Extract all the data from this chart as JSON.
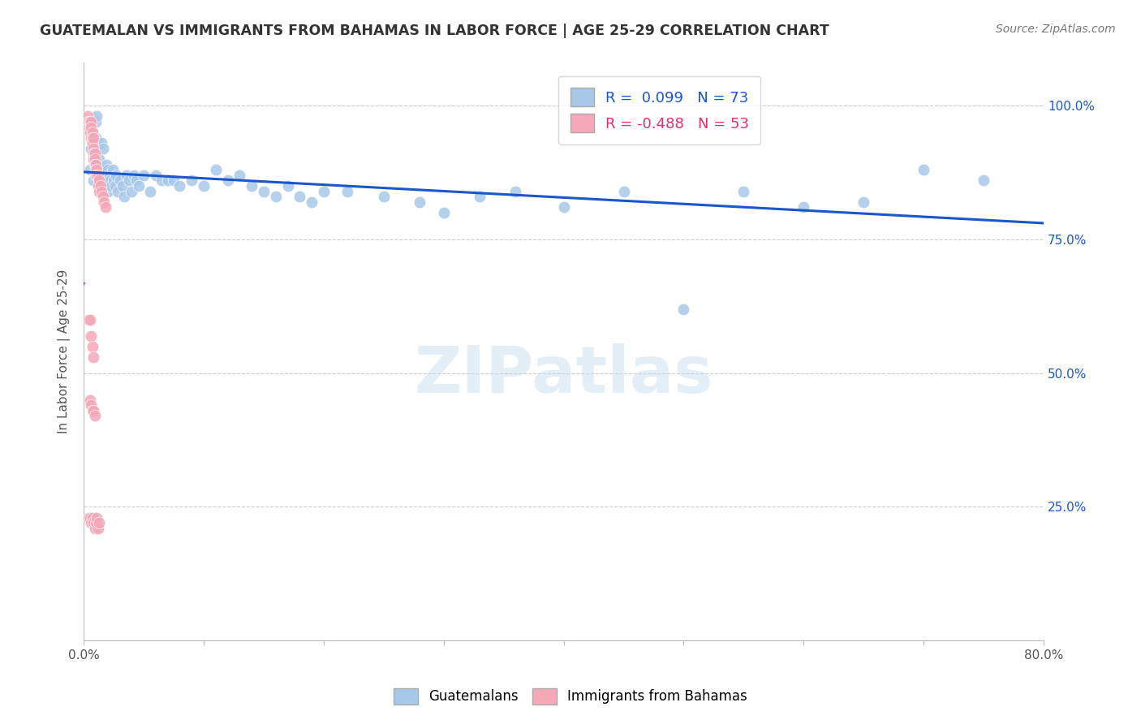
{
  "title": "GUATEMALAN VS IMMIGRANTS FROM BAHAMAS IN LABOR FORCE | AGE 25-29 CORRELATION CHART",
  "source": "Source: ZipAtlas.com",
  "ylabel": "In Labor Force | Age 25-29",
  "legend_label_blue": "Guatemalans",
  "legend_label_pink": "Immigrants from Bahamas",
  "r_blue": 0.099,
  "n_blue": 73,
  "r_pink": -0.488,
  "n_pink": 53,
  "blue_color": "#a8c8e8",
  "pink_color": "#f4a8b8",
  "blue_line_color": "#1a56cc",
  "pink_line_color": "#e03070",
  "pink_dash_color": "#f4a8b8",
  "blue_scatter_x": [
    0.005,
    0.006,
    0.007,
    0.008,
    0.009,
    0.01,
    0.01,
    0.011,
    0.012,
    0.012,
    0.013,
    0.013,
    0.014,
    0.015,
    0.015,
    0.016,
    0.016,
    0.017,
    0.018,
    0.018,
    0.019,
    0.02,
    0.02,
    0.021,
    0.022,
    0.023,
    0.024,
    0.025,
    0.026,
    0.027,
    0.028,
    0.03,
    0.032,
    0.034,
    0.036,
    0.038,
    0.04,
    0.042,
    0.044,
    0.046,
    0.05,
    0.055,
    0.06,
    0.065,
    0.07,
    0.075,
    0.08,
    0.09,
    0.1,
    0.11,
    0.12,
    0.13,
    0.14,
    0.15,
    0.16,
    0.17,
    0.18,
    0.19,
    0.2,
    0.22,
    0.25,
    0.28,
    0.3,
    0.33,
    0.36,
    0.4,
    0.45,
    0.5,
    0.55,
    0.6,
    0.65,
    0.7,
    0.75
  ],
  "blue_scatter_y": [
    0.88,
    0.92,
    0.94,
    0.86,
    0.9,
    0.97,
    0.94,
    0.98,
    0.88,
    0.93,
    0.86,
    0.9,
    0.88,
    0.87,
    0.93,
    0.86,
    0.92,
    0.88,
    0.87,
    0.85,
    0.89,
    0.88,
    0.84,
    0.87,
    0.86,
    0.85,
    0.88,
    0.86,
    0.85,
    0.87,
    0.84,
    0.86,
    0.85,
    0.83,
    0.87,
    0.86,
    0.84,
    0.87,
    0.86,
    0.85,
    0.87,
    0.84,
    0.87,
    0.86,
    0.86,
    0.86,
    0.85,
    0.86,
    0.85,
    0.88,
    0.86,
    0.87,
    0.85,
    0.84,
    0.83,
    0.85,
    0.83,
    0.82,
    0.84,
    0.84,
    0.83,
    0.82,
    0.8,
    0.83,
    0.84,
    0.81,
    0.84,
    0.62,
    0.84,
    0.81,
    0.82,
    0.88,
    0.86
  ],
  "pink_scatter_x": [
    0.003,
    0.004,
    0.004,
    0.005,
    0.005,
    0.005,
    0.006,
    0.006,
    0.006,
    0.007,
    0.007,
    0.007,
    0.008,
    0.008,
    0.008,
    0.008,
    0.009,
    0.009,
    0.009,
    0.01,
    0.01,
    0.01,
    0.011,
    0.011,
    0.012,
    0.012,
    0.013,
    0.013,
    0.014,
    0.015,
    0.016,
    0.017,
    0.018,
    0.004,
    0.005,
    0.006,
    0.007,
    0.008,
    0.005,
    0.006,
    0.007,
    0.008,
    0.009,
    0.004,
    0.005,
    0.006,
    0.007,
    0.008,
    0.009,
    0.01,
    0.011,
    0.012,
    0.013
  ],
  "pink_scatter_y": [
    0.98,
    0.97,
    0.96,
    0.97,
    0.96,
    0.95,
    0.97,
    0.96,
    0.94,
    0.95,
    0.94,
    0.93,
    0.94,
    0.92,
    0.91,
    0.9,
    0.91,
    0.9,
    0.89,
    0.89,
    0.88,
    0.87,
    0.88,
    0.87,
    0.87,
    0.85,
    0.86,
    0.84,
    0.85,
    0.84,
    0.83,
    0.82,
    0.81,
    0.6,
    0.6,
    0.57,
    0.55,
    0.53,
    0.45,
    0.44,
    0.43,
    0.43,
    0.42,
    0.23,
    0.23,
    0.22,
    0.23,
    0.22,
    0.21,
    0.22,
    0.23,
    0.21,
    0.22
  ],
  "xlim": [
    0.0,
    0.8
  ],
  "ylim": [
    0.0,
    1.08
  ],
  "y_ticks": [
    0.25,
    0.5,
    0.75,
    1.0
  ],
  "x_ticks": [
    0.0,
    0.1,
    0.2,
    0.3,
    0.4,
    0.5,
    0.6,
    0.7,
    0.8
  ],
  "x_label_show": [
    true,
    false,
    false,
    false,
    false,
    false,
    false,
    false,
    true
  ]
}
